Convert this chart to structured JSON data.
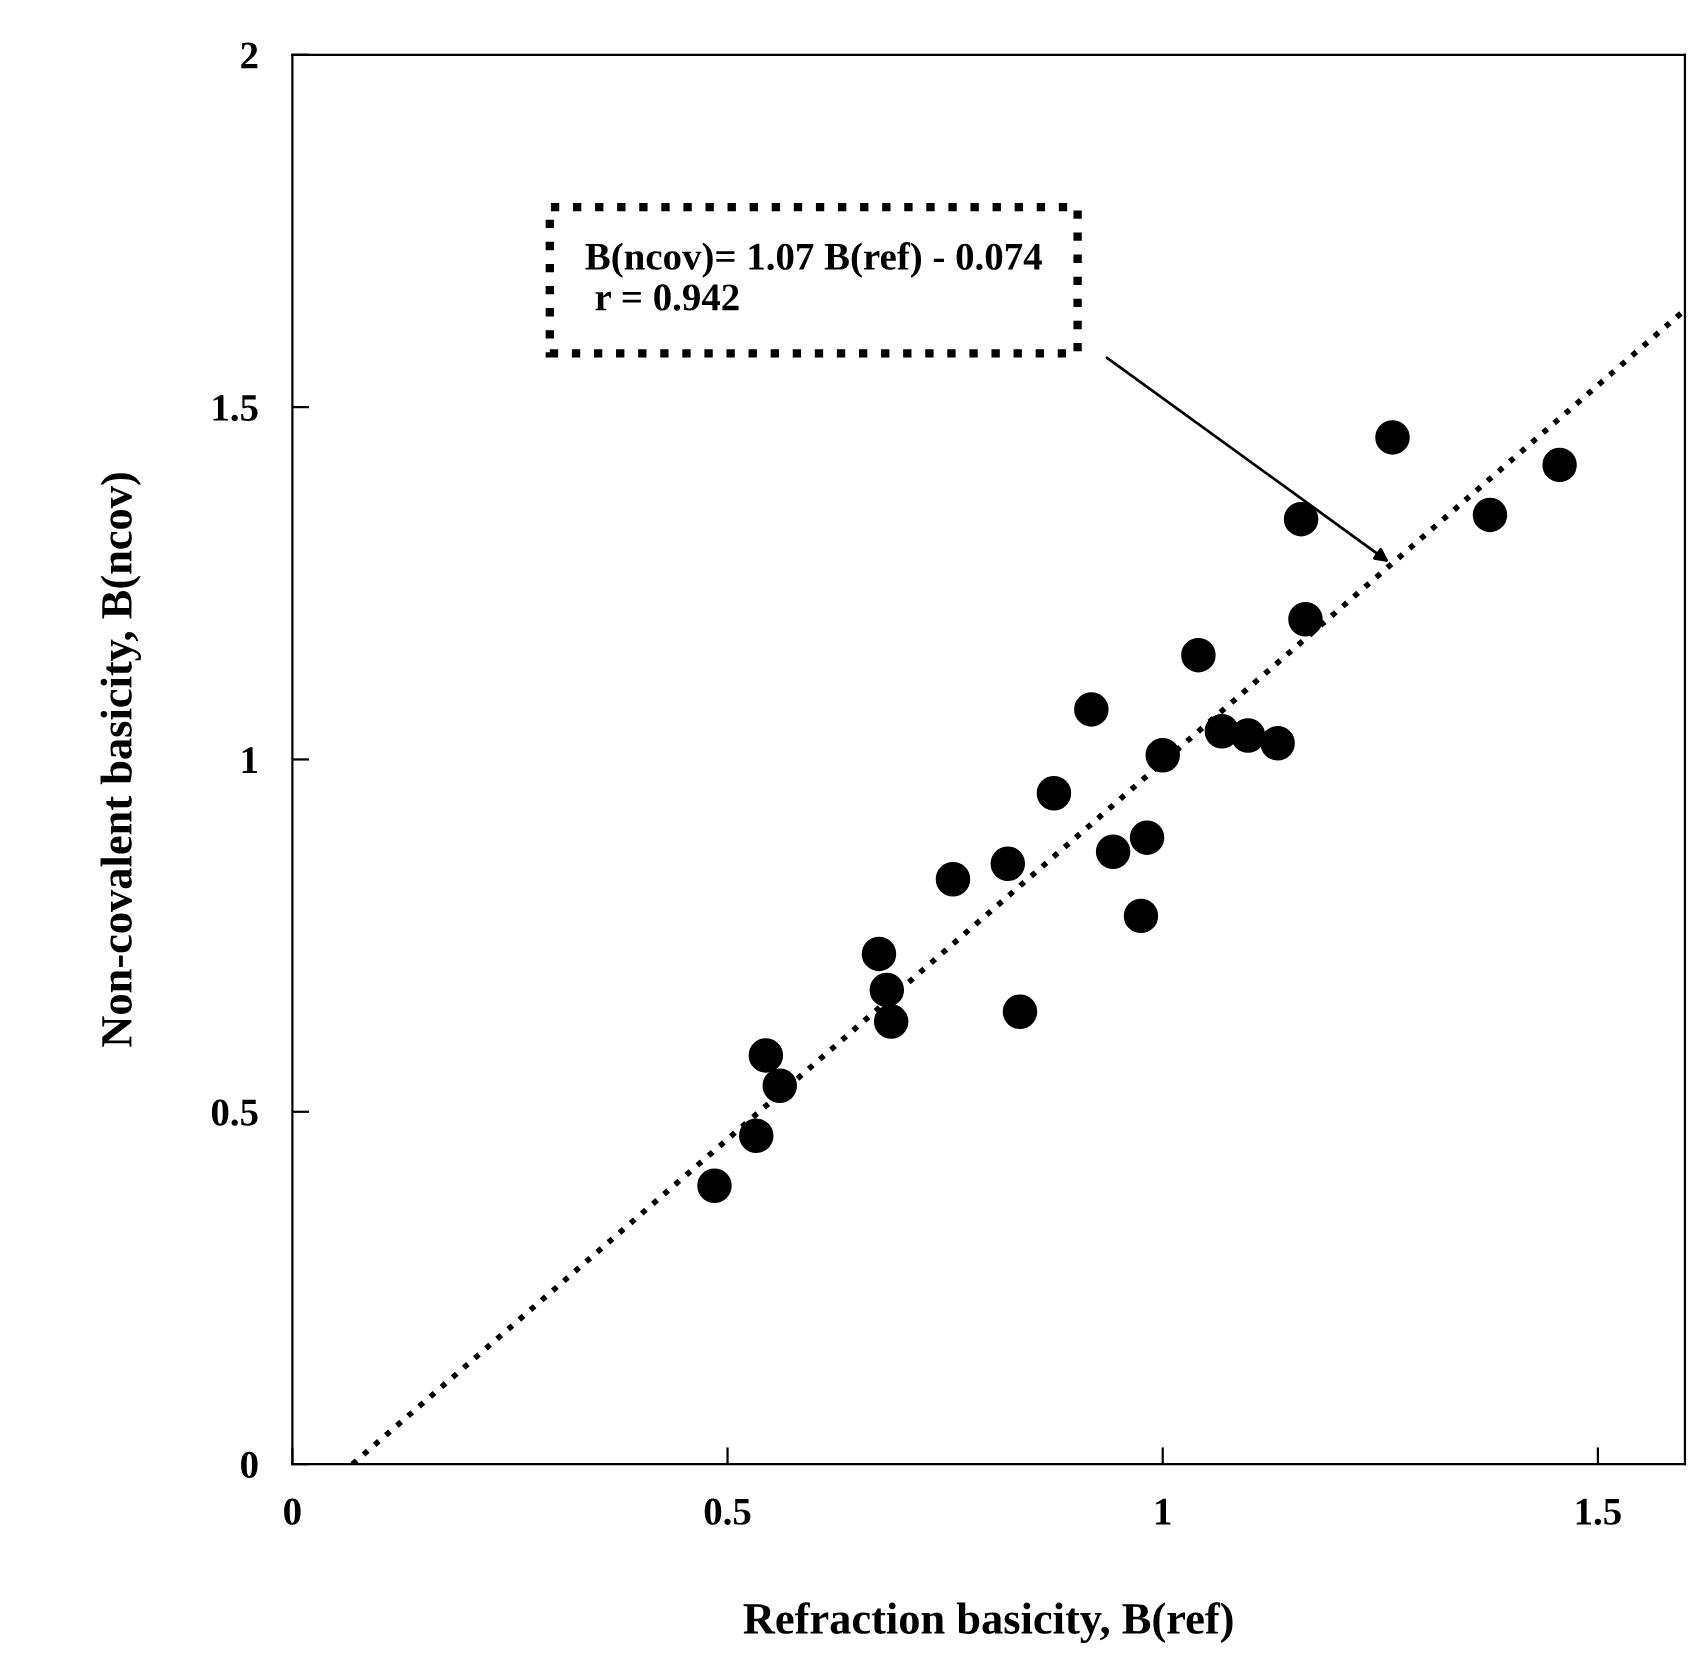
{
  "chart_data": {
    "type": "scatter",
    "xlabel": "Refraction basicity, B(ref)",
    "ylabel": "Non-covalent basicity, B(ncov)",
    "xlim": [
      0,
      1.6
    ],
    "ylim": [
      0,
      2
    ],
    "xticks": [
      0,
      0.5,
      1,
      1.5
    ],
    "yticks": [
      0,
      0.5,
      1,
      1.5,
      2
    ],
    "grid": false,
    "legend": false,
    "series": [
      {
        "color": "#000000",
        "marker": "circle",
        "x": [
          0.485,
          0.533,
          0.544,
          0.56,
          0.674,
          0.683,
          0.688,
          0.759,
          0.822,
          0.836,
          0.875,
          0.918,
          0.943,
          0.982,
          0.975,
          1.0,
          1.041,
          1.068,
          1.098,
          1.132,
          1.164,
          1.159,
          1.264,
          1.376,
          1.456
        ],
        "values": [
          0.395,
          0.466,
          0.58,
          0.537,
          0.724,
          0.673,
          0.628,
          0.83,
          0.852,
          0.642,
          0.952,
          1.071,
          0.869,
          0.889,
          0.778,
          1.006,
          1.148,
          1.04,
          1.034,
          1.023,
          1.199,
          1.341,
          1.457,
          1.347,
          1.418
        ]
      },
      {
        "type": "line",
        "color": "#000000",
        "marker": "none",
        "line_style": "dotted",
        "x": [
          0.069,
          1.6
        ],
        "values": [
          0,
          1.638
        ]
      }
    ],
    "annotations": [
      "B(ncov)= 1.07 B(ref) - 0.074\n r = 0.942"
    ]
  }
}
